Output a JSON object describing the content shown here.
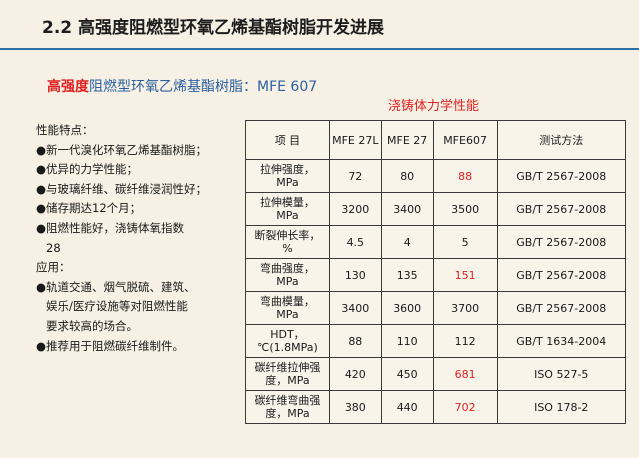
{
  "slide": {
    "title": "2.2 高强度阻燃型环氧乙烯基酯树脂开发进展"
  },
  "subtitle": {
    "highlight": "高强度",
    "rest": "阻燃型环氧乙烯基酯树脂：MFE 607"
  },
  "table_caption": "浇铸体力学性能",
  "features": {
    "heading": "性能特点：",
    "items": [
      "●新一代溴化环氧乙烯基酯树脂；",
      "●优异的力学性能；",
      "●与玻璃纤维、碳纤维浸润性好；",
      "●储存期达12个月；",
      "●阻燃性能好，浇铸体氧指数",
      "28"
    ],
    "app_heading": "应用：",
    "app_items": [
      "●轨道交通、烟气脱硫、建筑、",
      "娱乐/医疗设施等对阻燃性能",
      "要求较高的场合。",
      "●推荐用于阻燃碳纤维制件。"
    ]
  },
  "table": {
    "headers": [
      "项  目",
      "MFE 27L",
      "MFE 27",
      "MFE607",
      "测试方法"
    ],
    "rows": [
      {
        "prop1": "拉伸强度，",
        "prop2": "MPa",
        "v1": "72",
        "v2": "80",
        "v3": "88",
        "method": "GB/T 2567-2008",
        "v3_red": true
      },
      {
        "prop1": "拉伸模量，",
        "prop2": "MPa",
        "v1": "3200",
        "v2": "3400",
        "v3": "3500",
        "method": "GB/T 2567-2008",
        "v3_red": false
      },
      {
        "prop1": "断裂伸长率，",
        "prop2": "%",
        "v1": "4.5",
        "v2": "4",
        "v3": "5",
        "method": "GB/T 2567-2008",
        "v3_red": false
      },
      {
        "prop1": "弯曲强度，",
        "prop2": "MPa",
        "v1": "130",
        "v2": "135",
        "v3": "151",
        "method": "GB/T 2567-2008",
        "v3_red": true
      },
      {
        "prop1": "弯曲模量，",
        "prop2": "MPa",
        "v1": "3400",
        "v2": "3600",
        "v3": "3700",
        "method": "GB/T 2567-2008",
        "v3_red": false
      },
      {
        "prop1": "HDT，",
        "prop2": "℃(1.8MPa)",
        "v1": "88",
        "v2": "110",
        "v3": "112",
        "method": "GB/T 1634-2004",
        "v3_red": false
      },
      {
        "prop1": "碳纤维拉伸强",
        "prop2": "度，MPa",
        "v1": "420",
        "v2": "450",
        "v3": "681",
        "method": "ISO 527-5",
        "v3_red": true
      },
      {
        "prop1": "碳纤维弯曲强",
        "prop2": "度，MPa",
        "v1": "380",
        "v2": "440",
        "v3": "702",
        "method": "ISO 178-2",
        "v3_red": true
      }
    ]
  },
  "colors": {
    "accent_red": "#e02020",
    "accent_blue": "#2b5fa0",
    "title_rule": "#2f6fa7",
    "background": "#f6f1e4"
  }
}
